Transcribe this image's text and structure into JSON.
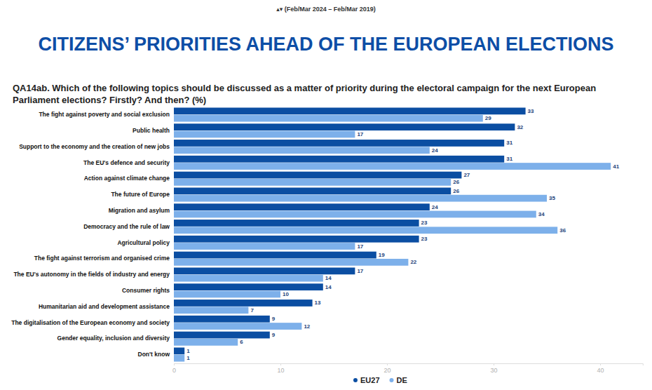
{
  "chart_data": {
    "type": "bar",
    "orientation": "horizontal",
    "annotations": [
      "▴▾ (Feb/Mar 2024 – Feb/Mar 2019)"
    ],
    "title": "CITIZENS’ PRIORITIES AHEAD OF THE EUROPEAN ELECTIONS",
    "subtitle": "QA14ab. Which of the following topics should be discussed as a matter of priority during the electoral campaign for the next European Parliament elections? Firstly? And then? (%)",
    "categories": [
      "The fight against poverty and social exclusion",
      "Public health",
      "Support to the economy and the creation of new jobs",
      "The EU's defence and security",
      "Action against climate change",
      "The future of Europe",
      "Migration and asylum",
      "Democracy and the rule of law",
      "Agricultural policy",
      "The fight against terrorism and organised crime",
      "The EU's autonomy in the fields of industry and energy",
      "Consumer rights",
      "Humanitarian aid and development assistance",
      "The digitalisation of the European economy and society",
      "Gender equality, inclusion and diversity",
      "Don't know"
    ],
    "series": [
      {
        "name": "EU27",
        "color": "#0b4ea2",
        "values": [
          33,
          32,
          31,
          31,
          27,
          26,
          24,
          23,
          23,
          19,
          17,
          14,
          13,
          9,
          9,
          1
        ]
      },
      {
        "name": "DE",
        "color": "#7db0ea",
        "values": [
          29,
          17,
          24,
          41,
          26,
          35,
          34,
          36,
          17,
          22,
          14,
          10,
          7,
          12,
          6,
          1
        ]
      }
    ],
    "xlim": [
      0,
      44
    ],
    "xticks": [
      0,
      10,
      20,
      30,
      40
    ],
    "grid": false,
    "data_labels": true,
    "legend": "bottom"
  }
}
